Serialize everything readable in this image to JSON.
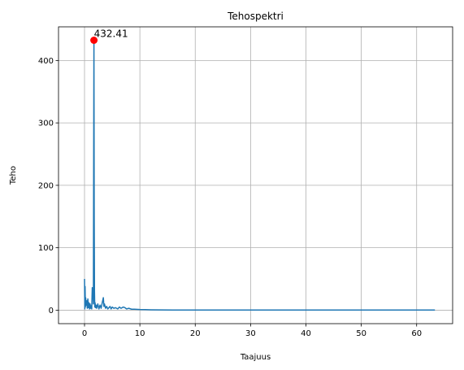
{
  "chart_data": {
    "type": "line",
    "title": "Tehospektri",
    "xlabel": "Taajuus",
    "ylabel": "Teho",
    "xlim": [
      -4.7,
      66.5
    ],
    "ylim": [
      -21.6,
      453.9
    ],
    "xticks": [
      0,
      10,
      20,
      30,
      40,
      50,
      60
    ],
    "yticks": [
      0,
      100,
      200,
      300,
      400
    ],
    "grid": true,
    "series": [
      {
        "color": "#1f77b4",
        "x": [
          0.0,
          0.05,
          0.1,
          0.15,
          0.2,
          0.3,
          0.4,
          0.5,
          0.6,
          0.7,
          0.8,
          0.9,
          1.0,
          1.1,
          1.2,
          1.3,
          1.4,
          1.5,
          1.6,
          1.7,
          1.75,
          1.8,
          1.85,
          1.9,
          2.0,
          2.1,
          2.2,
          2.4,
          2.6,
          2.8,
          3.0,
          3.2,
          3.4,
          3.5,
          3.6,
          3.8,
          4.0,
          4.2,
          4.4,
          4.6,
          4.8,
          5.0,
          5.3,
          5.6,
          6.0,
          6.3,
          6.6,
          7.0,
          7.3,
          7.6,
          8.0,
          8.5,
          9.0,
          10.0,
          11.0,
          12.0,
          14.0,
          16.0,
          20.0,
          30.0,
          40.0,
          50.0,
          60.0,
          63.3
        ],
        "y": [
          50,
          2,
          38,
          5,
          20,
          8,
          15,
          3,
          18,
          4,
          12,
          2,
          10,
          3,
          7,
          2,
          36,
          35,
          10,
          432.41,
          150,
          30,
          5,
          12,
          4,
          8,
          3,
          10,
          2,
          8,
          3,
          12,
          20,
          6,
          10,
          3,
          6,
          2,
          4,
          6,
          2,
          5,
          3,
          4,
          2,
          5,
          3,
          5,
          4,
          2,
          3,
          1.5,
          1.5,
          1,
          0.8,
          0.6,
          0.4,
          0.3,
          0.3,
          0.2,
          0.2,
          0.2,
          0.2,
          0.2
        ]
      }
    ],
    "peak": {
      "x": 1.7,
      "y": 432.41,
      "label": "432.41",
      "color": "#ff0000"
    }
  }
}
